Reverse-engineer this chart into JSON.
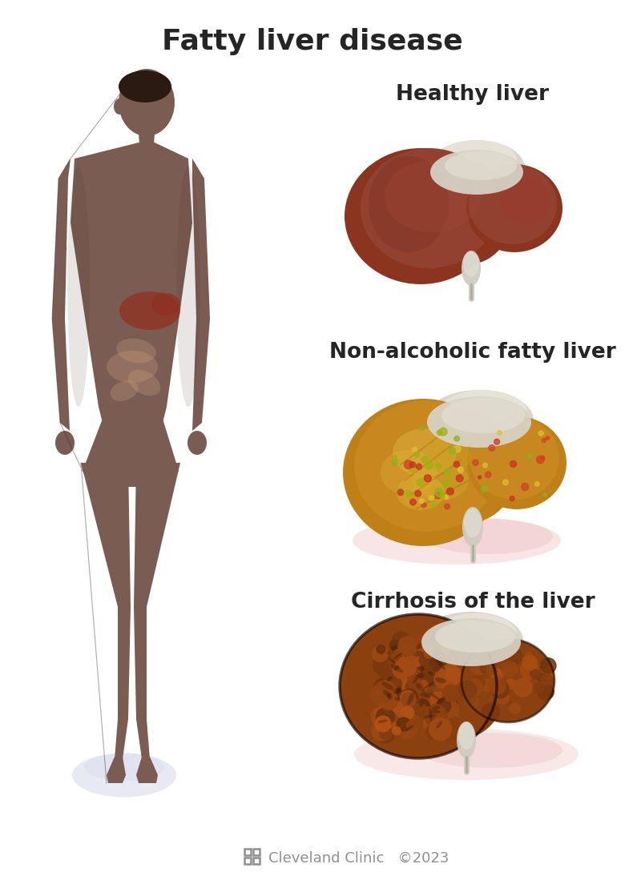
{
  "title": "Fatty liver disease",
  "title_fontsize": 26,
  "title_color": "#252525",
  "title_fontweight": "bold",
  "bg_color": "#ffffff",
  "label1": "Healthy liver",
  "label2": "Non-alcoholic fatty liver",
  "label3": "Cirrhosis of the liver",
  "label_fontsize": 19,
  "label_fontweight": "bold",
  "label_color": "#252525",
  "footer_color": "#909090",
  "footer_fontsize": 13,
  "body_fill": "#7a5c52",
  "body_dark": "#4a3028",
  "body_light": "#9a7060",
  "body_outline": "#5a3c32",
  "glow_color": "#c0d0e8",
  "healthy_main": "#8B3520",
  "healthy_dark": "#6a2010",
  "healthy_light": "#a04530",
  "fatty_main": "#C08018",
  "fatty_light": "#D4A030",
  "fatty_yellow": "#E0C050",
  "cirrh_main": "#8B4010",
  "cirrh_dark": "#5a2008",
  "cirrh_light": "#b06030",
  "silver": "#d0ccc0",
  "silver_dark": "#a0a090",
  "tissue_color": "#d8d4c8",
  "inflam_color": "#e08080"
}
